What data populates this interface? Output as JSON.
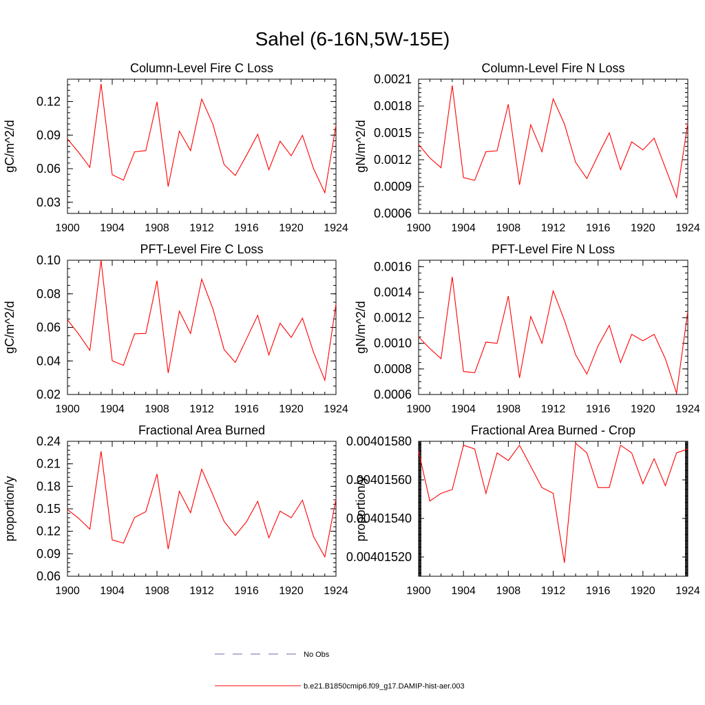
{
  "figure": {
    "title": "Sahel (6-16N,5W-15E)"
  },
  "chart_data": [
    {
      "type": "line",
      "title": "Column-Level Fire C Loss",
      "xlabel": "",
      "ylabel": "gC/m^2/d",
      "xlim": [
        1900,
        1924
      ],
      "ylim": [
        0.02,
        0.14
      ],
      "xticks": [
        "1900",
        "1904",
        "1908",
        "1912",
        "1916",
        "1920",
        "1924"
      ],
      "yticks": [
        "0.03",
        "0.06",
        "0.09",
        "0.12"
      ],
      "ytick_values": [
        0.03,
        0.06,
        0.09,
        0.12
      ],
      "yminor_step": 0.005,
      "x": [
        1900,
        1901,
        1902,
        1903,
        1904,
        1905,
        1906,
        1907,
        1908,
        1909,
        1910,
        1911,
        1912,
        1913,
        1914,
        1915,
        1916,
        1917,
        1918,
        1919,
        1920,
        1921,
        1922,
        1923,
        1924
      ],
      "series": [
        {
          "name": "b.e21.B1850cmip6.f09_g17.DAMIP-hist-aer.003",
          "color": "#ff0000",
          "values": [
            0.0865,
            0.0745,
            0.0612,
            0.1358,
            0.0546,
            0.0498,
            0.0751,
            0.0762,
            0.1197,
            0.044,
            0.0936,
            0.0761,
            0.1222,
            0.0996,
            0.0637,
            0.0539,
            0.0719,
            0.0907,
            0.059,
            0.0846,
            0.0715,
            0.0898,
            0.06,
            0.0385,
            0.0989
          ]
        }
      ]
    },
    {
      "type": "line",
      "title": "Column-Level Fire N Loss",
      "xlabel": "",
      "ylabel": "gN/m^2/d",
      "xlim": [
        1900,
        1924
      ],
      "ylim": [
        0.0006,
        0.0021
      ],
      "xticks": [
        "1900",
        "1904",
        "1908",
        "1912",
        "1916",
        "1920",
        "1924"
      ],
      "yticks": [
        "0.0006",
        "0.0009",
        "0.0012",
        "0.0015",
        "0.0018",
        "0.0021"
      ],
      "ytick_values": [
        0.0006,
        0.0009,
        0.0012,
        0.0015,
        0.0018,
        0.0021
      ],
      "yminor_step": 5e-05,
      "x": [
        1900,
        1901,
        1902,
        1903,
        1904,
        1905,
        1906,
        1907,
        1908,
        1909,
        1910,
        1911,
        1912,
        1913,
        1914,
        1915,
        1916,
        1917,
        1918,
        1919,
        1920,
        1921,
        1922,
        1923,
        1924
      ],
      "series": [
        {
          "name": "b.e21.B1850cmip6.f09_g17.DAMIP-hist-aer.003",
          "color": "#ff0000",
          "values": [
            0.00137,
            0.00122,
            0.00111,
            0.00203,
            0.001,
            0.00097,
            0.00129,
            0.0013,
            0.00182,
            0.00092,
            0.00159,
            0.00129,
            0.00188,
            0.0016,
            0.00117,
            0.00099,
            0.00125,
            0.0015,
            0.00109,
            0.0014,
            0.00131,
            0.00144,
            0.00111,
            0.00078,
            0.00161
          ]
        }
      ]
    },
    {
      "type": "line",
      "title": "PFT-Level Fire C Loss",
      "xlabel": "",
      "ylabel": "gC/m^2/d",
      "xlim": [
        1900,
        1924
      ],
      "ylim": [
        0.02,
        0.1
      ],
      "xticks": [
        "1900",
        "1904",
        "1908",
        "1912",
        "1916",
        "1920",
        "1924"
      ],
      "yticks": [
        "0.02",
        "0.04",
        "0.06",
        "0.08",
        "0.10"
      ],
      "ytick_values": [
        0.02,
        0.04,
        0.06,
        0.08,
        0.1
      ],
      "yminor_step": 0.005,
      "x": [
        1900,
        1901,
        1902,
        1903,
        1904,
        1905,
        1906,
        1907,
        1908,
        1909,
        1910,
        1911,
        1912,
        1913,
        1914,
        1915,
        1916,
        1917,
        1918,
        1919,
        1920,
        1921,
        1922,
        1923,
        1924
      ],
      "series": [
        {
          "name": "b.e21.B1850cmip6.f09_g17.DAMIP-hist-aer.003",
          "color": "#ff0000",
          "values": [
            0.0645,
            0.056,
            0.0463,
            0.1,
            0.0401,
            0.0374,
            0.0562,
            0.0564,
            0.0878,
            0.0328,
            0.0697,
            0.0563,
            0.0887,
            0.071,
            0.0468,
            0.0391,
            0.0531,
            0.0672,
            0.0436,
            0.0625,
            0.054,
            0.0655,
            0.045,
            0.0285,
            0.074
          ]
        }
      ]
    },
    {
      "type": "line",
      "title": "PFT-Level Fire N Loss",
      "xlabel": "",
      "ylabel": "gN/m^2/d",
      "xlim": [
        1900,
        1924
      ],
      "ylim": [
        0.0006,
        0.00165
      ],
      "xticks": [
        "1900",
        "1904",
        "1908",
        "1912",
        "1916",
        "1920",
        "1924"
      ],
      "yticks": [
        "0.0006",
        "0.0008",
        "0.0010",
        "0.0012",
        "0.0014",
        "0.0016"
      ],
      "ytick_values": [
        0.0006,
        0.0008,
        0.001,
        0.0012,
        0.0014,
        0.0016
      ],
      "yminor_step": 5e-05,
      "x": [
        1900,
        1901,
        1902,
        1903,
        1904,
        1905,
        1906,
        1907,
        1908,
        1909,
        1910,
        1911,
        1912,
        1913,
        1914,
        1915,
        1916,
        1917,
        1918,
        1919,
        1920,
        1921,
        1922,
        1923,
        1924
      ],
      "series": [
        {
          "name": "b.e21.B1850cmip6.f09_g17.DAMIP-hist-aer.003",
          "color": "#ff0000",
          "values": [
            0.00105,
            0.00096,
            0.00088,
            0.00152,
            0.00078,
            0.00077,
            0.00101,
            0.001,
            0.00137,
            0.00073,
            0.00121,
            0.001,
            0.00141,
            0.00118,
            0.00091,
            0.00076,
            0.00098,
            0.00114,
            0.00085,
            0.00107,
            0.00102,
            0.00107,
            0.00088,
            0.00061,
            0.00125
          ]
        }
      ]
    },
    {
      "type": "line",
      "title": "Fractional Area Burned",
      "xlabel": "",
      "ylabel": "proportion/y",
      "xlim": [
        1900,
        1924
      ],
      "ylim": [
        0.06,
        0.24
      ],
      "xticks": [
        "1900",
        "1904",
        "1908",
        "1912",
        "1916",
        "1920",
        "1924"
      ],
      "yticks": [
        "0.06",
        "0.09",
        "0.12",
        "0.15",
        "0.18",
        "0.21",
        "0.24"
      ],
      "ytick_values": [
        0.06,
        0.09,
        0.12,
        0.15,
        0.18,
        0.21,
        0.24
      ],
      "yminor_step": 0.006,
      "x": [
        1900,
        1901,
        1902,
        1903,
        1904,
        1905,
        1906,
        1907,
        1908,
        1909,
        1910,
        1911,
        1912,
        1913,
        1914,
        1915,
        1916,
        1917,
        1918,
        1919,
        1920,
        1921,
        1922,
        1923,
        1924
      ],
      "series": [
        {
          "name": "b.e21.B1850cmip6.f09_g17.DAMIP-hist-aer.003",
          "color": "#ff0000",
          "values": [
            0.149,
            0.1372,
            0.1228,
            0.2268,
            0.1085,
            0.1042,
            0.1384,
            0.1461,
            0.1964,
            0.0963,
            0.1734,
            0.1447,
            0.2027,
            0.1684,
            0.1331,
            0.1145,
            0.1326,
            0.16,
            0.1113,
            0.1469,
            0.1381,
            0.1615,
            0.1128,
            0.0859,
            0.163
          ]
        }
      ]
    },
    {
      "type": "line",
      "title": "Fractional Area Burned - Crop",
      "xlabel": "",
      "ylabel": "proportion/y",
      "xlim": [
        1900,
        1924
      ],
      "ylim": [
        0.0040151,
        0.0040158
      ],
      "xticks": [
        "1900",
        "1904",
        "1908",
        "1912",
        "1916",
        "1920",
        "1924"
      ],
      "yticks": [
        "0.00401520",
        "0.00401540",
        "0.00401560",
        "0.00401580"
      ],
      "ytick_values": [
        0.0040152,
        0.0040154,
        0.0040156,
        0.0040158
      ],
      "yminor_step": 4e-09,
      "x": [
        1900,
        1901,
        1902,
        1903,
        1904,
        1905,
        1906,
        1907,
        1908,
        1909,
        1910,
        1911,
        1912,
        1913,
        1914,
        1915,
        1916,
        1917,
        1918,
        1919,
        1920,
        1921,
        1922,
        1923,
        1924
      ],
      "series": [
        {
          "name": "b.e21.B1850cmip6.f09_g17.DAMIP-hist-aer.003",
          "color": "#ff0000",
          "values": [
            0.00401575,
            0.00401549,
            0.00401553,
            0.00401555,
            0.00401578,
            0.00401576,
            0.00401553,
            0.00401574,
            0.0040157,
            0.00401578,
            0.00401567,
            0.00401556,
            0.00401553,
            0.00401517,
            0.00401579,
            0.00401574,
            0.00401556,
            0.00401556,
            0.00401578,
            0.00401574,
            0.00401558,
            0.00401571,
            0.00401557,
            0.00401574,
            0.00401576
          ]
        }
      ]
    }
  ],
  "legend": {
    "items": [
      {
        "label": "No Obs",
        "color": "#6a6ab0",
        "style": "dashed"
      },
      {
        "label": "b.e21.B1850cmip6.f09_g17.DAMIP-hist-aer.003",
        "color": "#ff0000",
        "style": "solid"
      }
    ]
  }
}
